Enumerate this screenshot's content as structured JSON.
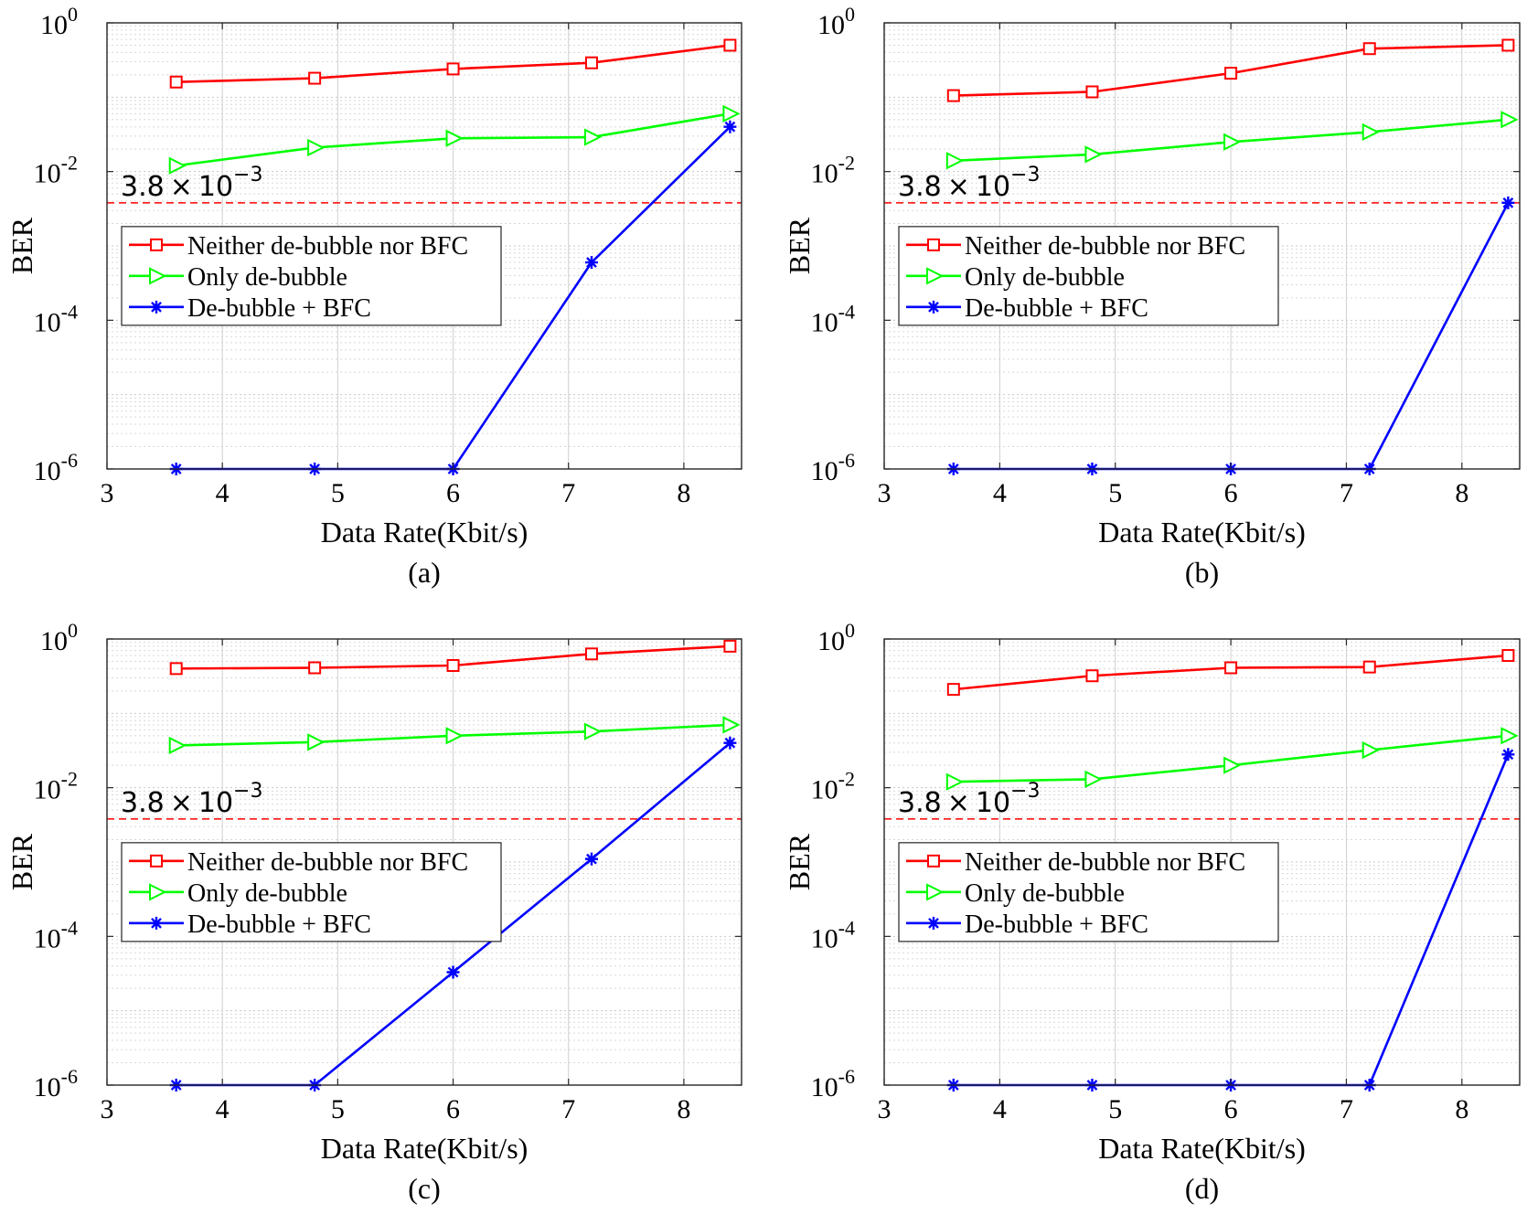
{
  "chart_data": [
    {
      "type": "line",
      "panel_label": "(a)",
      "xlabel": "Data Rate(Kbit/s)",
      "ylabel": "BER",
      "xlim": [
        3,
        8.5
      ],
      "ylim": [
        1e-06,
        1
      ],
      "yscale": "log",
      "xticks": [
        3,
        4,
        5,
        6,
        7,
        8
      ],
      "xtick_labels": [
        "3",
        "4",
        "5",
        "6",
        "7",
        "8"
      ],
      "yticks": [
        1e-06,
        0.0001,
        0.01,
        1
      ],
      "ytick_labels": [
        {
          "base": "10",
          "exp": "-6"
        },
        {
          "base": "10",
          "exp": "-4"
        },
        {
          "base": "10",
          "exp": "-2"
        },
        {
          "base": "10",
          "exp": "0"
        }
      ],
      "grid": true,
      "legend_position": "center-left",
      "threshold": {
        "value": 0.0038,
        "label_mantissa": "3.8",
        "label_times": "×",
        "label_base": "10",
        "label_exp": "−3",
        "color": "#ff0000"
      },
      "series": [
        {
          "name": "Neither de-bubble nor BFC",
          "color": "#ff0000",
          "marker": "square",
          "x": [
            3.6,
            4.8,
            6.0,
            7.2,
            8.4
          ],
          "y": [
            0.16,
            0.18,
            0.24,
            0.29,
            0.5
          ]
        },
        {
          "name": "Only de-bubble",
          "color": "#00ff00",
          "marker": "triangle-right",
          "x": [
            3.6,
            4.8,
            6.0,
            7.2,
            8.4
          ],
          "y": [
            0.012,
            0.021,
            0.028,
            0.029,
            0.06
          ]
        },
        {
          "name": "De-bubble + BFC",
          "color": "#0000ff",
          "marker": "star",
          "x": [
            3.6,
            4.8,
            6.0,
            7.2,
            8.4
          ],
          "y": [
            1e-06,
            1e-06,
            1e-06,
            0.0006,
            0.04
          ]
        }
      ]
    },
    {
      "type": "line",
      "panel_label": "(b)",
      "xlabel": "Data Rate(Kbit/s)",
      "ylabel": "BER",
      "xlim": [
        3,
        8.5
      ],
      "ylim": [
        1e-06,
        1
      ],
      "yscale": "log",
      "xticks": [
        3,
        4,
        5,
        6,
        7,
        8
      ],
      "xtick_labels": [
        "3",
        "4",
        "5",
        "6",
        "7",
        "8"
      ],
      "yticks": [
        1e-06,
        0.0001,
        0.01,
        1
      ],
      "ytick_labels": [
        {
          "base": "10",
          "exp": "-6"
        },
        {
          "base": "10",
          "exp": "-4"
        },
        {
          "base": "10",
          "exp": "-2"
        },
        {
          "base": "10",
          "exp": "0"
        }
      ],
      "grid": true,
      "legend_position": "center-left",
      "threshold": {
        "value": 0.0038,
        "label_mantissa": "3.8",
        "label_times": "×",
        "label_base": "10",
        "label_exp": "−3",
        "color": "#ff0000"
      },
      "series": [
        {
          "name": "Neither de-bubble nor BFC",
          "color": "#ff0000",
          "marker": "square",
          "x": [
            3.6,
            4.8,
            6.0,
            7.2,
            8.4
          ],
          "y": [
            0.105,
            0.118,
            0.21,
            0.45,
            0.5
          ]
        },
        {
          "name": "Only de-bubble",
          "color": "#00ff00",
          "marker": "triangle-right",
          "x": [
            3.6,
            4.8,
            6.0,
            7.2,
            8.4
          ],
          "y": [
            0.014,
            0.017,
            0.025,
            0.034,
            0.05
          ]
        },
        {
          "name": "De-bubble + BFC",
          "color": "#0000ff",
          "marker": "star",
          "x": [
            3.6,
            4.8,
            6.0,
            7.2,
            8.4
          ],
          "y": [
            1e-06,
            1e-06,
            1e-06,
            1e-06,
            0.0038
          ]
        }
      ]
    },
    {
      "type": "line",
      "panel_label": "(c)",
      "xlabel": "Data Rate(Kbit/s)",
      "ylabel": "BER",
      "xlim": [
        3,
        8.5
      ],
      "ylim": [
        1e-06,
        1
      ],
      "yscale": "log",
      "xticks": [
        3,
        4,
        5,
        6,
        7,
        8
      ],
      "xtick_labels": [
        "3",
        "4",
        "5",
        "6",
        "7",
        "8"
      ],
      "yticks": [
        1e-06,
        0.0001,
        0.01,
        1
      ],
      "ytick_labels": [
        {
          "base": "10",
          "exp": "-6"
        },
        {
          "base": "10",
          "exp": "-4"
        },
        {
          "base": "10",
          "exp": "-2"
        },
        {
          "base": "10",
          "exp": "0"
        }
      ],
      "grid": true,
      "legend_position": "center-left",
      "threshold": {
        "value": 0.0038,
        "label_mantissa": "3.8",
        "label_times": "×",
        "label_base": "10",
        "label_exp": "−3",
        "color": "#ff0000"
      },
      "series": [
        {
          "name": "Neither de-bubble nor BFC",
          "color": "#ff0000",
          "marker": "square",
          "x": [
            3.6,
            4.8,
            6.0,
            7.2,
            8.4
          ],
          "y": [
            0.4,
            0.41,
            0.44,
            0.63,
            0.8
          ]
        },
        {
          "name": "Only de-bubble",
          "color": "#00ff00",
          "marker": "triangle-right",
          "x": [
            3.6,
            4.8,
            6.0,
            7.2,
            8.4
          ],
          "y": [
            0.037,
            0.041,
            0.05,
            0.057,
            0.07
          ]
        },
        {
          "name": "De-bubble + BFC",
          "color": "#0000ff",
          "marker": "star",
          "x": [
            3.6,
            4.8,
            6.0,
            7.2,
            8.4
          ],
          "y": [
            1e-06,
            1e-06,
            3.3e-05,
            0.0011,
            0.04
          ]
        }
      ]
    },
    {
      "type": "line",
      "panel_label": "(d)",
      "xlabel": "Data Rate(Kbit/s)",
      "ylabel": "BER",
      "xlim": [
        3,
        8.5
      ],
      "ylim": [
        1e-06,
        1
      ],
      "yscale": "log",
      "xticks": [
        3,
        4,
        5,
        6,
        7,
        8
      ],
      "xtick_labels": [
        "3",
        "4",
        "5",
        "6",
        "7",
        "8"
      ],
      "yticks": [
        1e-06,
        0.0001,
        0.01,
        1
      ],
      "ytick_labels": [
        {
          "base": "10",
          "exp": "-6"
        },
        {
          "base": "10",
          "exp": "-4"
        },
        {
          "base": "10",
          "exp": "-2"
        },
        {
          "base": "10",
          "exp": "0"
        }
      ],
      "grid": true,
      "legend_position": "center-left",
      "threshold": {
        "value": 0.0038,
        "label_mantissa": "3.8",
        "label_times": "×",
        "label_base": "10",
        "label_exp": "−3",
        "color": "#ff0000"
      },
      "series": [
        {
          "name": "Neither de-bubble nor BFC",
          "color": "#ff0000",
          "marker": "square",
          "x": [
            3.6,
            4.8,
            6.0,
            7.2,
            8.4
          ],
          "y": [
            0.21,
            0.32,
            0.41,
            0.42,
            0.6
          ]
        },
        {
          "name": "Only de-bubble",
          "color": "#00ff00",
          "marker": "triangle-right",
          "x": [
            3.6,
            4.8,
            6.0,
            7.2,
            8.4
          ],
          "y": [
            0.012,
            0.013,
            0.02,
            0.032,
            0.05
          ]
        },
        {
          "name": "De-bubble + BFC",
          "color": "#0000ff",
          "marker": "star",
          "x": [
            3.6,
            4.8,
            6.0,
            7.2,
            8.4
          ],
          "y": [
            1e-06,
            1e-06,
            1e-06,
            1e-06,
            0.028
          ]
        }
      ]
    }
  ]
}
